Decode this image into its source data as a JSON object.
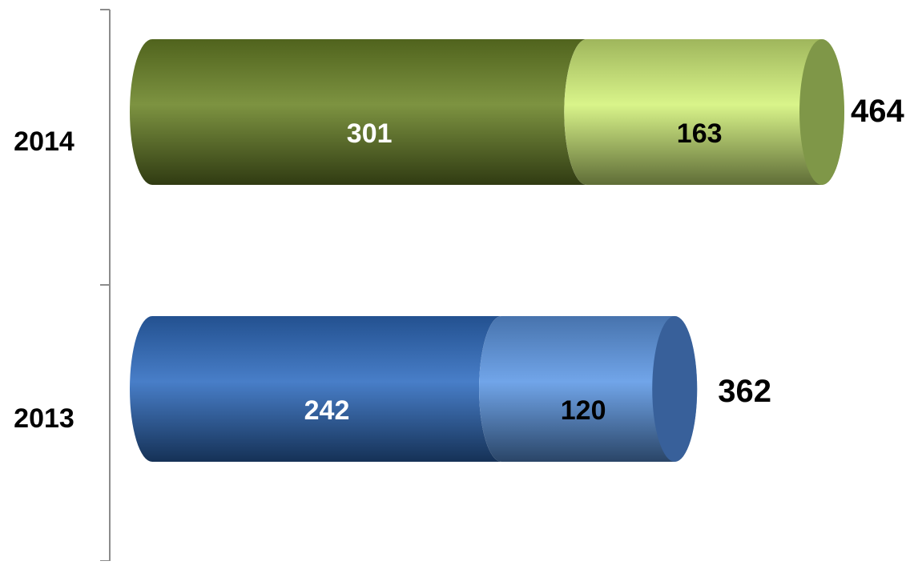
{
  "chart_data": {
    "type": "bar",
    "orientation": "horizontal",
    "stacked": true,
    "shape": "cylinder",
    "categories": [
      "2014",
      "2013"
    ],
    "series": [
      {
        "values": [
          301,
          242
        ]
      },
      {
        "values": [
          163,
          120
        ]
      }
    ],
    "totals": [
      464,
      362
    ],
    "xlim": [
      0,
      464
    ],
    "grid": false,
    "legend": "none",
    "colors": {
      "2014": {
        "main": "#6b8427",
        "secondary": "#d4f27a",
        "cap": "#7f9748"
      },
      "2013": {
        "main": "#2f6cc0",
        "secondary": "#5e99e6",
        "cap": "#38609a"
      }
    }
  }
}
